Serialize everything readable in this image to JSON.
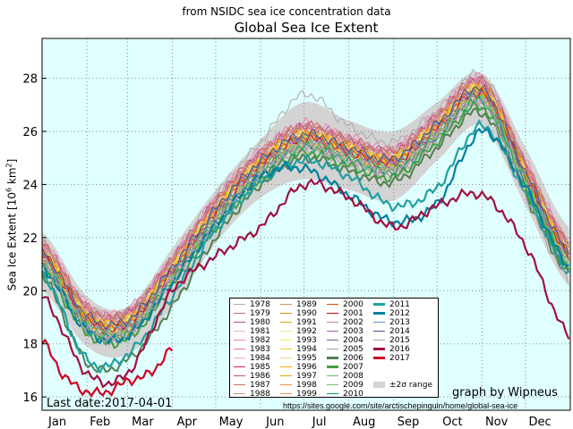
{
  "chart_data": {
    "type": "line",
    "subtitle": "from NSIDC sea ice concentration data",
    "title": "Global Sea Ice Extent",
    "ylabel": "Sea Ice Extent [10^6 km^2]",
    "ylabel_parts": {
      "text": "Sea Ice Extent ",
      "unit": "[10",
      "exp1": "6",
      "km": " km",
      "exp2": "2",
      "close": "]"
    },
    "xlabel": "",
    "xlim": [
      0,
      365
    ],
    "ylim": [
      15.5,
      29.5
    ],
    "grid": true,
    "yticks": [
      16,
      18,
      20,
      22,
      24,
      26,
      28
    ],
    "xtick_labels": [
      "Jan",
      "Feb",
      "Mar",
      "Apr",
      "May",
      "Jun",
      "Jul",
      "Aug",
      "Sep",
      "Oct",
      "Nov",
      "Dec"
    ],
    "x_days": [
      0,
      31,
      59,
      90,
      120,
      151,
      181,
      212,
      243,
      273,
      304,
      334,
      364
    ],
    "legend_position": "bottom-center",
    "band": {
      "name": "±2σ range",
      "color": "#d3d3d3",
      "upper": [
        22.2,
        19.8,
        19.4,
        21.6,
        23.8,
        25.7,
        27.1,
        26.4,
        26.0,
        27.1,
        28.2,
        25.4,
        22.4
      ],
      "lower": [
        20.0,
        17.9,
        17.6,
        19.4,
        21.8,
        23.5,
        24.2,
        23.8,
        23.4,
        24.9,
        26.2,
        23.2,
        20.2
      ]
    },
    "series": [
      {
        "name": "1978",
        "color": "#aaaaaa",
        "values": [
          21.8,
          19.4,
          19.2,
          21.2,
          23.6,
          25.6,
          27.4,
          26.2,
          25.6,
          26.8,
          28.1,
          24.8,
          21.8
        ]
      },
      {
        "name": "1979",
        "color": "#b07090",
        "values": [
          21.7,
          19.3,
          19.1,
          21.1,
          23.3,
          25.1,
          26.1,
          25.6,
          25.2,
          26.5,
          27.8,
          24.7,
          21.7
        ]
      },
      {
        "name": "1980",
        "color": "#b0508f",
        "values": [
          21.8,
          19.4,
          19.2,
          21.2,
          23.4,
          25.2,
          26.2,
          25.7,
          25.3,
          26.6,
          27.9,
          24.8,
          21.8
        ]
      },
      {
        "name": "1981",
        "color": "#f0b0d0",
        "values": [
          21.6,
          19.2,
          19.0,
          21.0,
          23.2,
          25.0,
          26.0,
          25.5,
          25.1,
          26.4,
          27.7,
          24.6,
          21.6
        ]
      },
      {
        "name": "1982",
        "color": "#f080b0",
        "values": [
          21.9,
          19.5,
          19.3,
          21.3,
          23.5,
          25.3,
          26.3,
          25.8,
          25.4,
          26.7,
          28.0,
          24.9,
          21.9
        ]
      },
      {
        "name": "1983",
        "color": "#f070a0",
        "values": [
          21.7,
          19.3,
          19.1,
          21.1,
          23.3,
          25.1,
          26.1,
          25.6,
          25.2,
          26.5,
          27.8,
          24.7,
          21.7
        ]
      },
      {
        "name": "1984",
        "color": "#f4a8c8",
        "values": [
          21.5,
          19.1,
          18.9,
          20.9,
          23.1,
          24.9,
          25.9,
          25.4,
          25.0,
          26.3,
          27.6,
          24.5,
          21.5
        ]
      },
      {
        "name": "1985",
        "color": "#e0205a",
        "values": [
          21.4,
          19.0,
          18.8,
          20.8,
          23.0,
          24.8,
          25.8,
          25.3,
          24.9,
          26.2,
          27.5,
          24.4,
          21.4
        ]
      },
      {
        "name": "1986",
        "color": "#d05060",
        "values": [
          21.8,
          19.4,
          19.2,
          21.2,
          23.4,
          25.2,
          26.2,
          25.7,
          25.3,
          26.6,
          27.9,
          24.8,
          21.8
        ]
      },
      {
        "name": "1987",
        "color": "#c87060",
        "values": [
          21.7,
          19.3,
          19.1,
          21.1,
          23.3,
          25.1,
          26.1,
          25.6,
          25.2,
          26.5,
          27.8,
          24.7,
          21.7
        ]
      },
      {
        "name": "1988",
        "color": "#c09080",
        "values": [
          21.8,
          19.4,
          19.2,
          21.2,
          23.4,
          25.2,
          26.2,
          25.7,
          25.3,
          26.6,
          27.9,
          24.8,
          21.8
        ]
      },
      {
        "name": "1989",
        "color": "#d09060",
        "values": [
          21.6,
          19.2,
          19.0,
          21.0,
          23.2,
          25.0,
          26.0,
          25.5,
          25.1,
          26.4,
          27.7,
          24.6,
          21.6
        ]
      },
      {
        "name": "1990",
        "color": "#c89000",
        "values": [
          21.5,
          19.1,
          18.9,
          20.9,
          23.1,
          24.9,
          25.9,
          25.4,
          25.0,
          26.3,
          27.6,
          24.5,
          21.5
        ]
      },
      {
        "name": "1991",
        "color": "#d8a800",
        "values": [
          21.4,
          19.0,
          18.8,
          20.8,
          23.0,
          24.8,
          25.8,
          25.3,
          24.9,
          26.2,
          27.5,
          24.4,
          21.4
        ]
      },
      {
        "name": "1992",
        "color": "#f0e080",
        "values": [
          21.5,
          19.1,
          18.9,
          20.9,
          23.1,
          24.9,
          25.9,
          25.4,
          25.0,
          26.3,
          27.6,
          24.5,
          21.5
        ]
      },
      {
        "name": "1993",
        "color": "#f0f040",
        "values": [
          21.4,
          19.0,
          18.8,
          20.8,
          23.0,
          24.8,
          25.8,
          25.3,
          24.9,
          26.2,
          27.5,
          24.4,
          21.4
        ]
      },
      {
        "name": "1994",
        "color": "#f0d020",
        "values": [
          21.5,
          19.1,
          18.9,
          20.9,
          23.1,
          24.9,
          25.9,
          25.4,
          25.0,
          26.3,
          27.6,
          24.5,
          21.5
        ]
      },
      {
        "name": "1995",
        "color": "#f8d090",
        "values": [
          21.2,
          18.8,
          18.6,
          20.6,
          22.8,
          24.6,
          25.6,
          25.1,
          24.7,
          26.0,
          27.3,
          24.2,
          21.2
        ]
      },
      {
        "name": "1996",
        "color": "#f8a800",
        "values": [
          21.4,
          19.0,
          18.8,
          20.8,
          23.0,
          24.8,
          25.8,
          25.3,
          24.9,
          26.2,
          27.5,
          24.4,
          21.4
        ]
      },
      {
        "name": "1997",
        "color": "#f8a000",
        "values": [
          21.1,
          18.7,
          18.5,
          20.5,
          22.7,
          24.5,
          25.5,
          25.0,
          24.6,
          25.9,
          27.2,
          24.1,
          21.1
        ]
      },
      {
        "name": "1998",
        "color": "#f89040",
        "values": [
          21.5,
          19.1,
          18.9,
          20.9,
          23.1,
          24.9,
          25.9,
          25.4,
          25.0,
          26.3,
          27.6,
          24.5,
          21.5
        ]
      },
      {
        "name": "1999",
        "color": "#f89060",
        "values": [
          21.3,
          18.9,
          18.7,
          20.7,
          22.9,
          24.7,
          25.7,
          25.2,
          24.8,
          26.1,
          27.4,
          24.3,
          21.3
        ]
      },
      {
        "name": "2000",
        "color": "#e05000",
        "values": [
          21.4,
          19.0,
          18.8,
          20.8,
          23.0,
          24.8,
          25.8,
          25.3,
          24.9,
          26.2,
          27.5,
          24.4,
          21.4
        ]
      },
      {
        "name": "2001",
        "color": "#c80000",
        "values": [
          21.3,
          18.9,
          18.7,
          20.7,
          22.9,
          24.7,
          25.7,
          25.2,
          24.8,
          26.1,
          27.4,
          24.3,
          21.3
        ]
      },
      {
        "name": "2002",
        "color": "#d080a0",
        "values": [
          21.0,
          18.6,
          18.4,
          20.4,
          22.6,
          24.4,
          25.4,
          24.9,
          24.5,
          25.8,
          27.1,
          24.0,
          21.0
        ]
      },
      {
        "name": "2003",
        "color": "#a060b0",
        "values": [
          21.3,
          18.9,
          18.7,
          20.7,
          22.9,
          24.7,
          25.7,
          25.2,
          24.8,
          26.1,
          27.4,
          24.3,
          21.3
        ]
      },
      {
        "name": "2004",
        "color": "#806090",
        "values": [
          21.1,
          18.7,
          18.5,
          20.5,
          22.7,
          24.5,
          25.5,
          25.0,
          24.6,
          25.9,
          27.2,
          24.1,
          21.1
        ]
      },
      {
        "name": "2005",
        "color": "#a0a0a0",
        "values": [
          20.9,
          18.5,
          18.3,
          20.3,
          22.5,
          24.3,
          25.3,
          24.8,
          24.4,
          25.7,
          27.0,
          23.9,
          20.9
        ]
      },
      {
        "name": "2006",
        "color": "#508050",
        "values": [
          20.6,
          17.3,
          17.4,
          19.4,
          22.0,
          24.0,
          25.0,
          24.5,
          24.1,
          25.4,
          26.7,
          23.6,
          20.6
        ]
      },
      {
        "name": "2007",
        "color": "#40a040",
        "values": [
          20.8,
          18.4,
          18.2,
          20.2,
          22.4,
          24.2,
          25.2,
          24.7,
          24.3,
          25.6,
          26.9,
          23.8,
          20.8
        ]
      },
      {
        "name": "2008",
        "color": "#60c060",
        "values": [
          21.2,
          18.8,
          18.6,
          20.6,
          22.8,
          24.6,
          25.6,
          25.1,
          24.7,
          26.0,
          27.3,
          24.2,
          21.2
        ]
      },
      {
        "name": "2009",
        "color": "#70c070",
        "values": [
          21.1,
          18.7,
          18.5,
          20.5,
          22.7,
          24.5,
          25.5,
          25.0,
          24.6,
          25.9,
          27.2,
          24.1,
          21.1
        ]
      },
      {
        "name": "2010",
        "color": "#00a070",
        "values": [
          21.0,
          18.6,
          18.4,
          20.4,
          22.6,
          24.4,
          25.4,
          24.9,
          24.5,
          25.8,
          27.1,
          24.0,
          21.0
        ]
      },
      {
        "name": "2011",
        "color": "#20a0a0",
        "values": [
          20.7,
          17.4,
          17.6,
          19.8,
          22.3,
          24.1,
          24.9,
          24.3,
          23.2,
          23.9,
          26.2,
          23.7,
          20.7
        ]
      },
      {
        "name": "2012",
        "color": "#0080a0",
        "values": [
          20.9,
          18.5,
          18.3,
          20.3,
          22.5,
          24.3,
          24.6,
          23.6,
          22.6,
          23.3,
          26.0,
          23.9,
          20.9
        ]
      },
      {
        "name": "2013",
        "color": "#6090d0",
        "values": [
          21.4,
          19.0,
          18.8,
          20.8,
          23.0,
          24.8,
          25.8,
          25.3,
          24.9,
          26.2,
          27.5,
          24.4,
          21.4
        ]
      },
      {
        "name": "2014",
        "color": "#405090",
        "values": [
          21.5,
          19.1,
          18.9,
          20.9,
          23.1,
          24.9,
          25.9,
          25.4,
          25.0,
          26.3,
          27.6,
          24.5,
          21.5
        ]
      },
      {
        "name": "2015",
        "color": "#b0a0b0",
        "values": [
          21.0,
          18.6,
          18.4,
          20.4,
          22.6,
          24.4,
          25.4,
          24.9,
          24.5,
          25.8,
          27.1,
          23.6,
          20.4
        ]
      },
      {
        "name": "2016",
        "color": "#a01040",
        "values": [
          19.8,
          16.9,
          16.9,
          20.0,
          21.3,
          22.4,
          24.0,
          23.5,
          22.4,
          23.2,
          23.6,
          21.7,
          18.3
        ]
      },
      {
        "name": "2017",
        "color": "#d00020",
        "x_days": [
          0,
          15,
          31,
          45,
          59,
          75,
          90
        ],
        "values": [
          18.1,
          16.8,
          16.2,
          16.2,
          16.6,
          16.9,
          17.8
        ]
      }
    ],
    "annotations": {
      "last_date": "Last date:2017-04-01",
      "credit": "graph by Wipneus",
      "url": "https://sites.google.com/site/arctischepinguin/home/global-sea-ice"
    }
  },
  "colors": {
    "plot_background": "#e0ffff"
  }
}
